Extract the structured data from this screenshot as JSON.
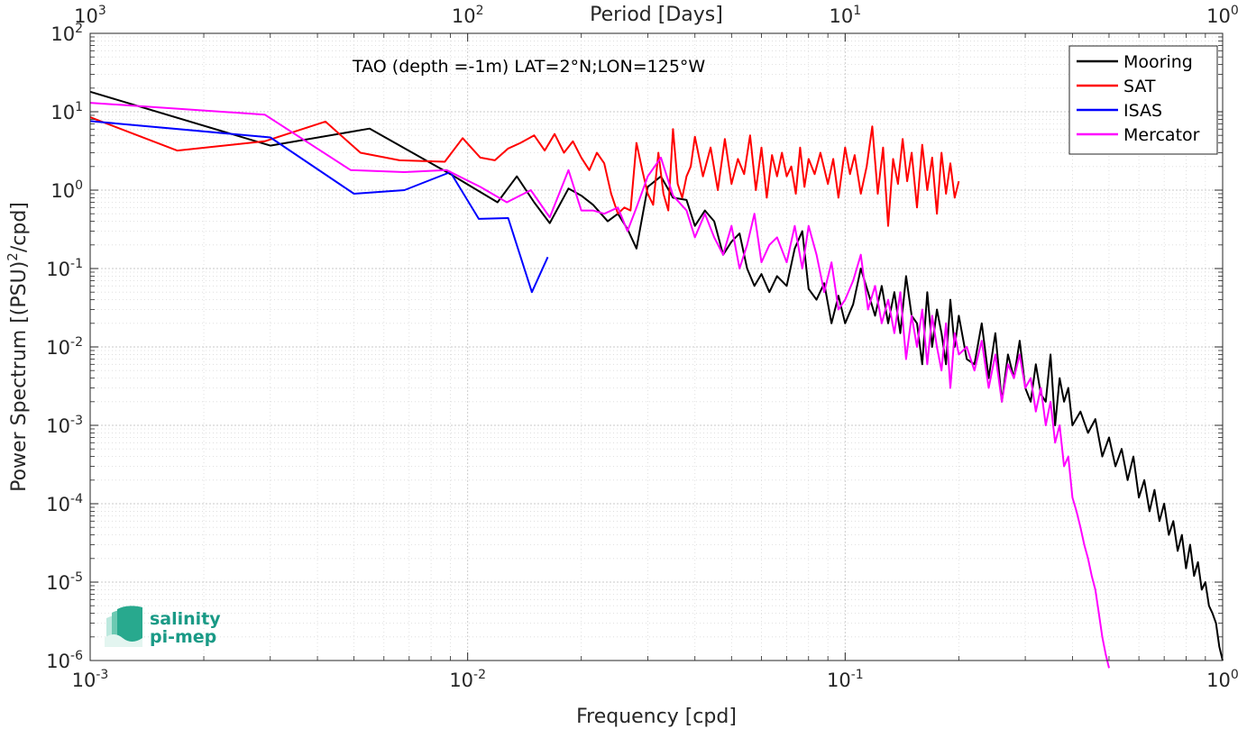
{
  "chart_data": {
    "type": "line",
    "title": "",
    "annotation": "TAO (depth =-1m) LAT=2°N;LON=125°W",
    "xlabel": "Frequency [cpd]",
    "ylabel_prefix": "Power Spectrum [(PSU)",
    "ylabel_sup": "2",
    "ylabel_suffix": "/cpd]",
    "top_xlabel": "Period [Days]",
    "xscale": "log",
    "yscale": "log",
    "xlim": [
      0.001,
      1
    ],
    "ylim": [
      1e-06,
      100
    ],
    "grid": true,
    "legend_position": "top-right",
    "x_ticks": [
      {
        "value": 0.001,
        "base": "10",
        "exp": "-3"
      },
      {
        "value": 0.01,
        "base": "10",
        "exp": "-2"
      },
      {
        "value": 0.1,
        "base": "10",
        "exp": "-1"
      },
      {
        "value": 1,
        "base": "10",
        "exp": "0"
      }
    ],
    "y_ticks": [
      {
        "value": 1e-06,
        "base": "10",
        "exp": "-6"
      },
      {
        "value": 1e-05,
        "base": "10",
        "exp": "-5"
      },
      {
        "value": 0.0001,
        "base": "10",
        "exp": "-4"
      },
      {
        "value": 0.001,
        "base": "10",
        "exp": "-3"
      },
      {
        "value": 0.01,
        "base": "10",
        "exp": "-2"
      },
      {
        "value": 0.1,
        "base": "10",
        "exp": "-1"
      },
      {
        "value": 1,
        "base": "10",
        "exp": "0"
      },
      {
        "value": 10,
        "base": "10",
        "exp": "1"
      },
      {
        "value": 100,
        "base": "10",
        "exp": "2"
      }
    ],
    "top_ticks": [
      {
        "period": 1000,
        "base": "10",
        "exp": "3"
      },
      {
        "period": 100,
        "base": "10",
        "exp": "2"
      },
      {
        "period": 10,
        "base": "10",
        "exp": "1"
      },
      {
        "period": 1,
        "base": "10",
        "exp": "0"
      }
    ],
    "series": [
      {
        "name": "Mooring",
        "color": "#000000",
        "x": [
          0.001,
          0.003,
          0.0055,
          0.009,
          0.012,
          0.0135,
          0.015,
          0.0165,
          0.0185,
          0.02,
          0.0215,
          0.0235,
          0.025,
          0.0265,
          0.028,
          0.03,
          0.0325,
          0.035,
          0.038,
          0.04,
          0.0425,
          0.045,
          0.0475,
          0.05,
          0.0525,
          0.055,
          0.0575,
          0.06,
          0.063,
          0.066,
          0.07,
          0.0735,
          0.077,
          0.08,
          0.084,
          0.088,
          0.092,
          0.096,
          0.1,
          0.105,
          0.11,
          0.115,
          0.12,
          0.125,
          0.13,
          0.135,
          0.14,
          0.145,
          0.15,
          0.155,
          0.16,
          0.165,
          0.17,
          0.175,
          0.18,
          0.185,
          0.19,
          0.195,
          0.2,
          0.21,
          0.22,
          0.23,
          0.24,
          0.25,
          0.26,
          0.27,
          0.28,
          0.29,
          0.3,
          0.31,
          0.32,
          0.33,
          0.34,
          0.35,
          0.36,
          0.37,
          0.38,
          0.39,
          0.4,
          0.42,
          0.44,
          0.46,
          0.48,
          0.5,
          0.52,
          0.54,
          0.56,
          0.58,
          0.6,
          0.62,
          0.64,
          0.66,
          0.68,
          0.7,
          0.72,
          0.74,
          0.76,
          0.78,
          0.8,
          0.82,
          0.84,
          0.86,
          0.88,
          0.9,
          0.92,
          0.94,
          0.96,
          0.98,
          1.0
        ],
        "y": [
          18,
          3.7,
          6.1,
          1.6,
          0.7,
          1.5,
          0.7,
          0.38,
          1.05,
          0.85,
          0.65,
          0.4,
          0.5,
          0.32,
          0.18,
          1.1,
          1.5,
          0.8,
          0.75,
          0.35,
          0.55,
          0.4,
          0.15,
          0.22,
          0.28,
          0.1,
          0.06,
          0.085,
          0.05,
          0.08,
          0.06,
          0.18,
          0.3,
          0.055,
          0.04,
          0.065,
          0.02,
          0.045,
          0.02,
          0.035,
          0.1,
          0.05,
          0.025,
          0.06,
          0.02,
          0.05,
          0.015,
          0.08,
          0.025,
          0.02,
          0.006,
          0.05,
          0.01,
          0.03,
          0.015,
          0.006,
          0.04,
          0.01,
          0.025,
          0.007,
          0.006,
          0.02,
          0.004,
          0.015,
          0.002,
          0.008,
          0.004,
          0.012,
          0.003,
          0.002,
          0.006,
          0.0025,
          0.002,
          0.008,
          0.001,
          0.004,
          0.002,
          0.003,
          0.001,
          0.0015,
          0.0008,
          0.0012,
          0.0004,
          0.0007,
          0.0003,
          0.0005,
          0.0002,
          0.0004,
          0.00012,
          0.0002,
          8e-05,
          0.00015,
          6e-05,
          0.0001,
          4e-05,
          6e-05,
          2.5e-05,
          4e-05,
          1.5e-05,
          3e-05,
          1.2e-05,
          1.8e-05,
          8e-06,
          1e-05,
          5e-06,
          4e-06,
          3e-06,
          1.5e-06,
          1e-06
        ]
      },
      {
        "name": "SAT",
        "color": "#ff0000",
        "x": [
          0.001,
          0.0017,
          0.0029,
          0.0042,
          0.0052,
          0.0066,
          0.0087,
          0.0097,
          0.0108,
          0.0118,
          0.0128,
          0.0138,
          0.015,
          0.016,
          0.017,
          0.018,
          0.019,
          0.02,
          0.021,
          0.022,
          0.023,
          0.024,
          0.025,
          0.026,
          0.027,
          0.028,
          0.029,
          0.03,
          0.031,
          0.032,
          0.033,
          0.034,
          0.035,
          0.036,
          0.037,
          0.038,
          0.039,
          0.04,
          0.042,
          0.044,
          0.046,
          0.048,
          0.05,
          0.052,
          0.054,
          0.056,
          0.058,
          0.06,
          0.062,
          0.064,
          0.066,
          0.068,
          0.07,
          0.072,
          0.074,
          0.076,
          0.078,
          0.08,
          0.083,
          0.086,
          0.09,
          0.093,
          0.096,
          0.1,
          0.103,
          0.106,
          0.11,
          0.114,
          0.118,
          0.122,
          0.126,
          0.13,
          0.134,
          0.138,
          0.142,
          0.146,
          0.15,
          0.155,
          0.16,
          0.165,
          0.17,
          0.175,
          0.18,
          0.185,
          0.19,
          0.195,
          0.2
        ],
        "y": [
          8.5,
          3.2,
          4.2,
          7.5,
          3.0,
          2.4,
          2.3,
          4.6,
          2.6,
          2.4,
          3.4,
          4.0,
          5.0,
          3.2,
          5.2,
          3.0,
          4.2,
          2.6,
          1.8,
          3.0,
          2.2,
          0.9,
          0.5,
          0.6,
          0.55,
          4.0,
          1.8,
          0.9,
          0.65,
          3.0,
          0.9,
          0.55,
          6.0,
          1.2,
          0.8,
          1.5,
          2.0,
          4.8,
          1.5,
          3.5,
          1.0,
          4.5,
          1.2,
          2.5,
          1.6,
          5.0,
          1.0,
          3.5,
          0.8,
          2.8,
          1.5,
          3.0,
          1.5,
          2.0,
          0.9,
          3.5,
          1.1,
          2.5,
          1.6,
          3.0,
          1.2,
          2.5,
          0.8,
          3.5,
          1.6,
          2.8,
          0.9,
          2.0,
          6.5,
          0.9,
          3.5,
          0.35,
          2.5,
          1.2,
          4.5,
          1.3,
          3.0,
          0.6,
          3.8,
          1.0,
          2.6,
          0.5,
          3.0,
          0.9,
          2.2,
          0.8,
          1.3
        ]
      },
      {
        "name": "ISAS",
        "color": "#0000ff",
        "x": [
          0.001,
          0.003,
          0.005,
          0.0068,
          0.009,
          0.0107,
          0.0128,
          0.0148,
          0.0163
        ],
        "y": [
          7.6,
          4.7,
          0.9,
          1.0,
          1.7,
          0.43,
          0.44,
          0.05,
          0.14
        ]
      },
      {
        "name": "Mercator",
        "color": "#ff00ff",
        "x": [
          0.001,
          0.0029,
          0.0049,
          0.0068,
          0.0088,
          0.0108,
          0.0127,
          0.0147,
          0.0165,
          0.0185,
          0.02,
          0.0215,
          0.023,
          0.025,
          0.0265,
          0.028,
          0.03,
          0.0325,
          0.035,
          0.038,
          0.04,
          0.0425,
          0.045,
          0.0475,
          0.05,
          0.0525,
          0.055,
          0.0575,
          0.06,
          0.063,
          0.066,
          0.07,
          0.0735,
          0.077,
          0.08,
          0.084,
          0.088,
          0.092,
          0.096,
          0.1,
          0.105,
          0.11,
          0.115,
          0.12,
          0.125,
          0.13,
          0.135,
          0.14,
          0.145,
          0.15,
          0.155,
          0.16,
          0.165,
          0.17,
          0.175,
          0.18,
          0.185,
          0.19,
          0.195,
          0.2,
          0.21,
          0.22,
          0.23,
          0.24,
          0.25,
          0.26,
          0.27,
          0.28,
          0.29,
          0.3,
          0.31,
          0.32,
          0.33,
          0.34,
          0.35,
          0.36,
          0.37,
          0.38,
          0.39,
          0.4,
          0.41,
          0.42,
          0.43,
          0.44,
          0.45,
          0.46,
          0.47,
          0.48,
          0.49,
          0.5
        ],
        "y": [
          13,
          9.2,
          1.8,
          1.7,
          1.8,
          1.1,
          0.7,
          1.0,
          0.45,
          1.8,
          0.55,
          0.55,
          0.5,
          0.6,
          0.3,
          0.6,
          1.5,
          2.6,
          0.85,
          0.55,
          0.25,
          0.5,
          0.25,
          0.15,
          0.35,
          0.1,
          0.2,
          0.5,
          0.12,
          0.2,
          0.25,
          0.12,
          0.35,
          0.1,
          0.35,
          0.15,
          0.05,
          0.12,
          0.03,
          0.04,
          0.07,
          0.15,
          0.03,
          0.06,
          0.02,
          0.04,
          0.015,
          0.05,
          0.007,
          0.025,
          0.01,
          0.03,
          0.006,
          0.025,
          0.01,
          0.005,
          0.02,
          0.003,
          0.015,
          0.008,
          0.01,
          0.005,
          0.012,
          0.003,
          0.008,
          0.002,
          0.006,
          0.004,
          0.008,
          0.003,
          0.004,
          0.0015,
          0.003,
          0.001,
          0.002,
          0.0006,
          0.001,
          0.0003,
          0.0004,
          0.00012,
          8e-05,
          5e-05,
          3e-05,
          2e-05,
          1.2e-05,
          8e-06,
          4e-06,
          2e-06,
          1.2e-06,
          8e-07
        ]
      }
    ]
  },
  "logo": {
    "line1": "salinity",
    "line2": "pi-mep"
  }
}
